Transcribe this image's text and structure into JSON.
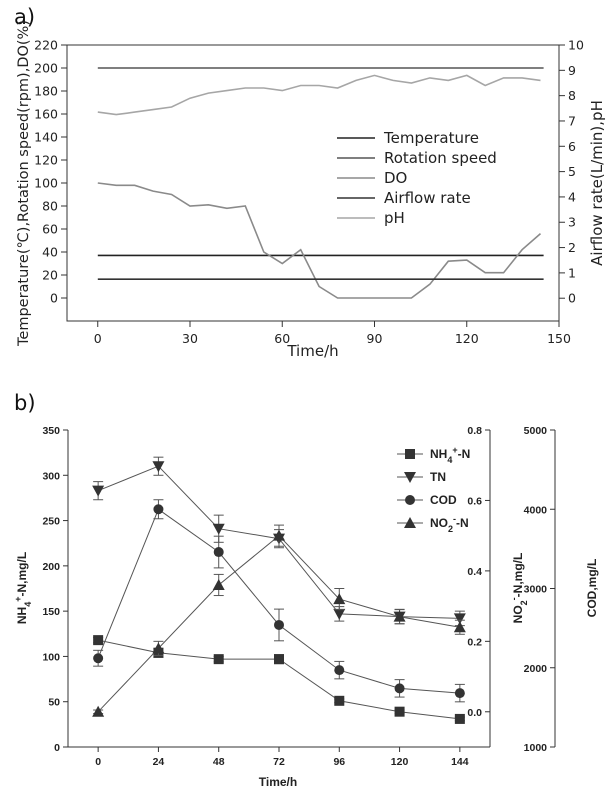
{
  "panel_labels": {
    "a": "a)",
    "b": "b)"
  },
  "chart_data": [
    {
      "type": "line",
      "panel": "a)",
      "xlabel": "Time/h",
      "ylabel_left": "Temperature(℃),Rotation speed(rpm),DO(%)",
      "ylabel_right": "Airflow rate(L/min),pH",
      "xlim": [
        -10,
        150
      ],
      "xticks": [
        0,
        30,
        60,
        90,
        120,
        150
      ],
      "ylim_left": [
        -20,
        220
      ],
      "yticks_left": [
        0,
        20,
        40,
        60,
        80,
        100,
        120,
        140,
        160,
        180,
        200,
        220
      ],
      "ylim_right": [
        -0.9,
        10
      ],
      "yticks_right": [
        0,
        1,
        2,
        3,
        4,
        5,
        6,
        7,
        8,
        9,
        10
      ],
      "legend_position": "center-right",
      "series": [
        {
          "name": "Temperature",
          "axis": "left",
          "color": "#222222",
          "x": [
            0,
            145
          ],
          "y": [
            37,
            37
          ]
        },
        {
          "name": "Rotation speed",
          "axis": "left",
          "color": "#555555",
          "x": [
            0,
            145
          ],
          "y": [
            200,
            200
          ]
        },
        {
          "name": "DO",
          "axis": "left",
          "color": "#8a8a8a",
          "x": [
            0,
            6,
            12,
            18,
            24,
            30,
            36,
            42,
            48,
            54,
            60,
            66,
            72,
            78,
            84,
            90,
            96,
            102,
            108,
            114,
            120,
            126,
            132,
            138,
            144
          ],
          "y": [
            100,
            98,
            98,
            93,
            90,
            80,
            81,
            78,
            80,
            40,
            30,
            42,
            10,
            0,
            0,
            0,
            0,
            0,
            12,
            32,
            33,
            22,
            22,
            42,
            56
          ]
        },
        {
          "name": "Airflow rate",
          "axis": "right",
          "color": "#333333",
          "x": [
            0,
            145
          ],
          "y": [
            0.75,
            0.75
          ]
        },
        {
          "name": "pH",
          "axis": "right",
          "color": "#a6a6a6",
          "x": [
            0,
            6,
            12,
            18,
            24,
            30,
            36,
            42,
            48,
            54,
            60,
            66,
            72,
            78,
            84,
            90,
            96,
            102,
            108,
            114,
            120,
            126,
            132,
            138,
            144
          ],
          "y": [
            7.35,
            7.25,
            7.35,
            7.45,
            7.55,
            7.9,
            8.1,
            8.2,
            8.3,
            8.3,
            8.2,
            8.4,
            8.4,
            8.3,
            8.6,
            8.8,
            8.6,
            8.5,
            8.7,
            8.6,
            8.8,
            8.4,
            8.7,
            8.7,
            8.6
          ]
        }
      ]
    },
    {
      "type": "line",
      "panel": "b)",
      "xlabel": "Time/h",
      "xlim": [
        -12,
        156
      ],
      "xticks": [
        0,
        24,
        48,
        72,
        96,
        120,
        144
      ],
      "axes": {
        "left": {
          "label_parts": [
            "NH",
            "4",
            "+",
            "-N,mg/L"
          ],
          "lim": [
            0,
            350
          ],
          "ticks": [
            0,
            50,
            100,
            150,
            200,
            250,
            300,
            350
          ]
        },
        "right1": {
          "label_parts": [
            "NO",
            "2",
            "-",
            "-N,mg/L"
          ],
          "lim": [
            -0.1,
            0.8
          ],
          "ticks": [
            0.0,
            0.2,
            0.4,
            0.6,
            0.8
          ],
          "tick_labels": [
            "0.0",
            "0.2",
            "0.4",
            "0.6",
            "0.8"
          ]
        },
        "right2": {
          "label": "COD,mg/L",
          "lim": [
            1000,
            5000
          ],
          "ticks": [
            1000,
            2000,
            3000,
            4000,
            5000
          ]
        }
      },
      "legend_position": "top-right",
      "series": [
        {
          "name_parts": [
            "NH",
            "4",
            "+",
            "-N"
          ],
          "axis": "left",
          "marker": "square",
          "x": [
            0,
            24,
            48,
            72,
            96,
            120,
            144
          ],
          "y": [
            118,
            104,
            97,
            97,
            51,
            39,
            31
          ],
          "err": [
            3,
            5,
            3,
            5,
            2,
            2,
            2
          ]
        },
        {
          "name": "TN",
          "axis": "left",
          "marker": "triangle-down",
          "x": [
            0,
            24,
            48,
            72,
            96,
            120,
            144
          ],
          "y": [
            283,
            310,
            241,
            230,
            147,
            144,
            142
          ],
          "err": [
            10,
            10,
            15,
            10,
            8,
            8,
            8
          ]
        },
        {
          "name": "COD",
          "axis": "right2",
          "marker": "circle",
          "x": [
            0,
            24,
            48,
            72,
            96,
            120,
            144
          ],
          "y": [
            2120,
            4000,
            3460,
            2540,
            1970,
            1740,
            1680
          ],
          "err": [
            100,
            120,
            200,
            200,
            110,
            110,
            110
          ]
        },
        {
          "name_parts": [
            "NO",
            "2",
            "-",
            "-N"
          ],
          "axis": "right1",
          "marker": "triangle-up",
          "x": [
            0,
            24,
            48,
            72,
            96,
            120,
            144
          ],
          "y": [
            0.0,
            0.18,
            0.36,
            0.5,
            0.32,
            0.27,
            0.24
          ],
          "err": [
            0.005,
            0.02,
            0.03,
            0.03,
            0.03,
            0.02,
            0.02
          ]
        }
      ]
    }
  ]
}
